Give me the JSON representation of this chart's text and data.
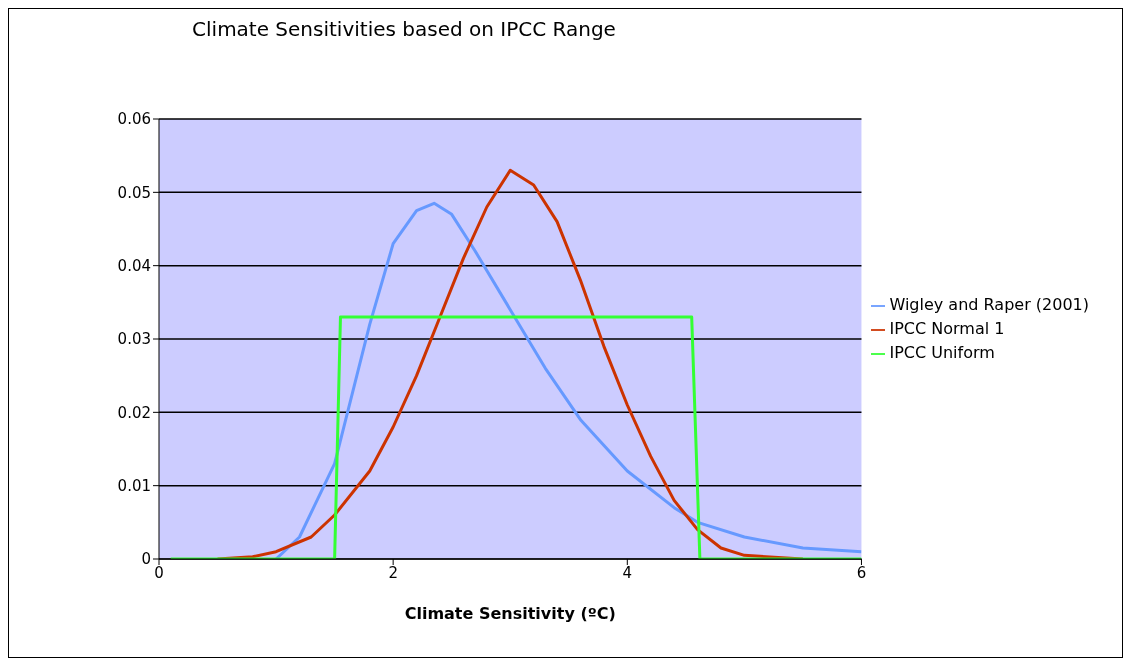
{
  "chart_data": {
    "type": "line",
    "title": "Climate Sensitivities based on IPCC Range",
    "xlabel": "Climate Sensitivity (ºC)",
    "xlim": [
      0,
      6
    ],
    "xticks": [
      0,
      2,
      4,
      6
    ],
    "ylim": [
      0,
      0.06
    ],
    "yticks": [
      0,
      0.01,
      0.02,
      0.03,
      0.04,
      0.05,
      0.06
    ],
    "grid": "y",
    "legend": "right",
    "marker": "none",
    "line_style": "solid",
    "series": [
      {
        "name": "Wigley and Raper (2001)",
        "color": "#6699ff",
        "x": [
          1.0,
          1.2,
          1.5,
          1.8,
          2.0,
          2.2,
          2.35,
          2.5,
          2.7,
          3.0,
          3.3,
          3.6,
          4.0,
          4.4,
          4.6,
          5.0,
          5.5,
          6.0
        ],
        "values": [
          0,
          0.003,
          0.013,
          0.032,
          0.043,
          0.0475,
          0.0485,
          0.047,
          0.042,
          0.034,
          0.026,
          0.019,
          0.012,
          0.007,
          0.005,
          0.003,
          0.0015,
          0.001
        ]
      },
      {
        "name": "IPCC Normal 1",
        "color": "#cc3300",
        "x": [
          0.5,
          0.8,
          1.0,
          1.3,
          1.5,
          1.8,
          2.0,
          2.2,
          2.4,
          2.6,
          2.8,
          3.0,
          3.2,
          3.4,
          3.6,
          3.8,
          4.0,
          4.2,
          4.4,
          4.6,
          4.8,
          5.0,
          5.5
        ],
        "values": [
          0,
          0.0003,
          0.001,
          0.003,
          0.006,
          0.012,
          0.018,
          0.025,
          0.033,
          0.041,
          0.048,
          0.053,
          0.051,
          0.046,
          0.038,
          0.029,
          0.021,
          0.014,
          0.008,
          0.004,
          0.0015,
          0.0005,
          0
        ]
      },
      {
        "name": "IPCC Uniform",
        "color": "#33ff33",
        "x": [
          0.1,
          1.5,
          1.55,
          4.55,
          4.62,
          6.0
        ],
        "values": [
          0,
          0,
          0.033,
          0.033,
          0,
          0
        ]
      }
    ]
  }
}
